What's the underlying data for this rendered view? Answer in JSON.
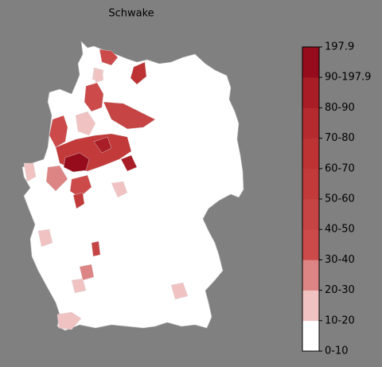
{
  "title": "Schwake",
  "colorbar": {
    "labels": [
      "0-10",
      "10-20",
      "20-30",
      "30-40",
      "40-50",
      "50-60",
      "60-70",
      "70-80",
      "80-90",
      "90-197.9",
      "197.9"
    ],
    "colors": [
      "#ffffff",
      "#f0c2c2",
      "#dd8585",
      "#cc4a4a",
      "#c64444",
      "#c23a3a",
      "#bd3333",
      "#b52a2e",
      "#a81d26",
      "#960c1c"
    ]
  }
}
